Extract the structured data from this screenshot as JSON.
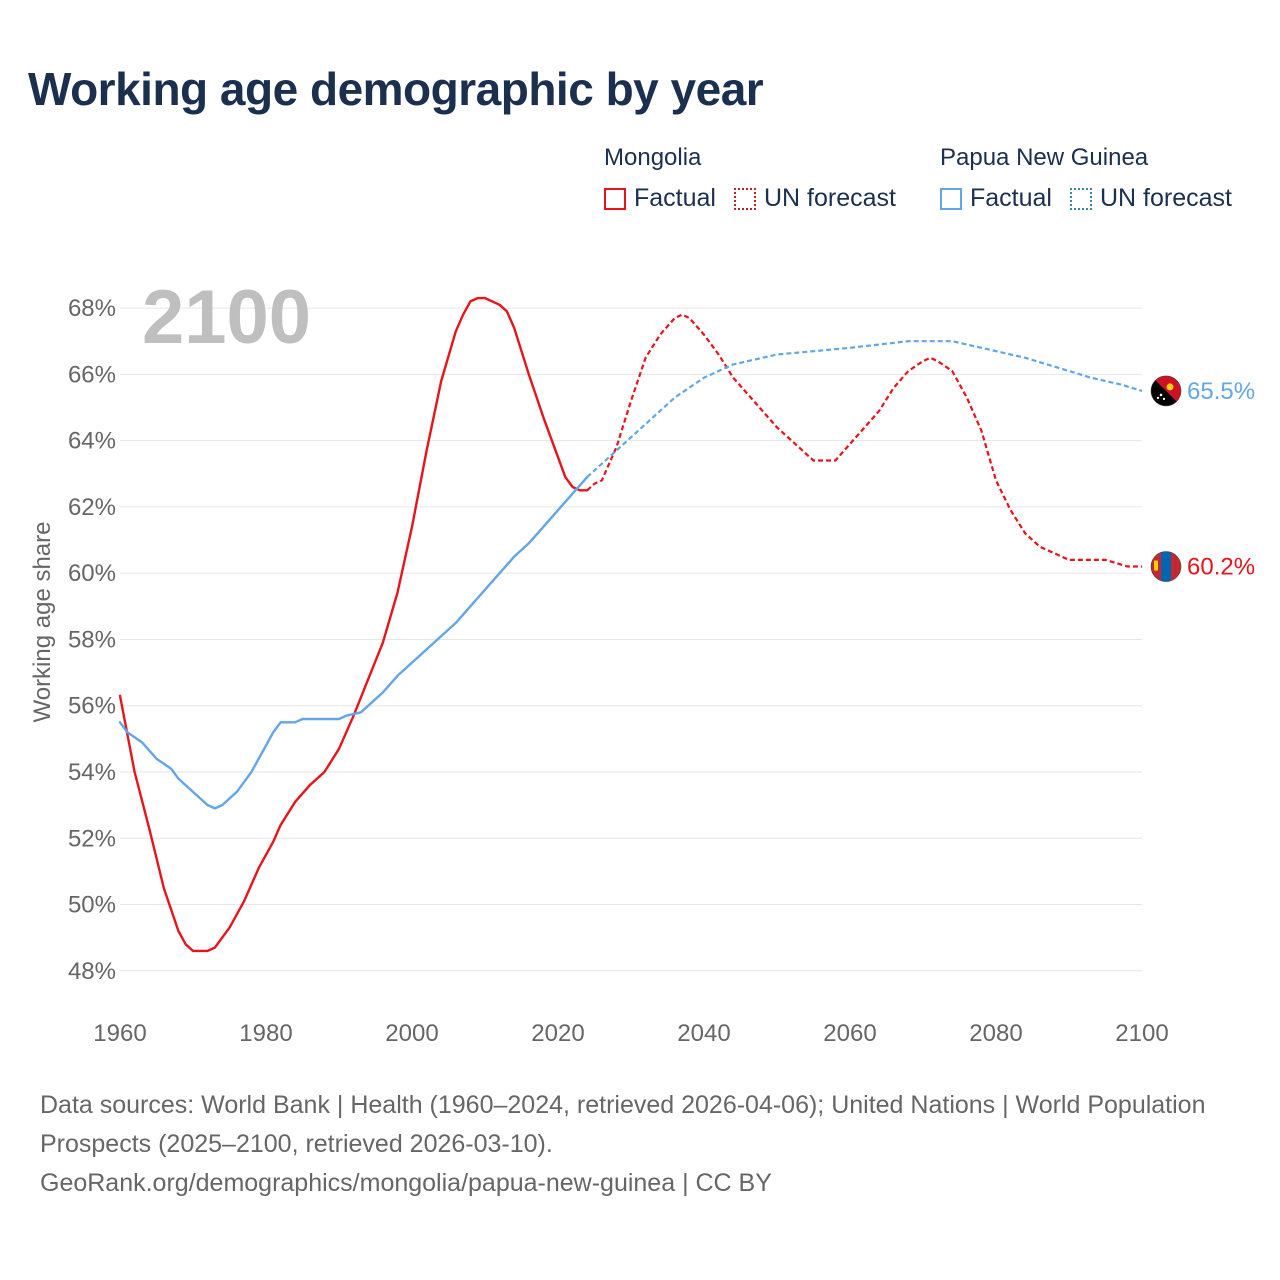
{
  "title": "Working age demographic by year",
  "colors": {
    "mongolia": "#e8141c",
    "png": "#62a6e8",
    "grid": "#e6e6e6",
    "axis_text": "#666666",
    "title": "#1b2f4f",
    "year_watermark": "#bfbfbf"
  },
  "legend": {
    "groups": [
      {
        "name": "Mongolia",
        "factual": "Factual",
        "forecast": "UN forecast"
      },
      {
        "name": "Papua New Guinea",
        "factual": "Factual",
        "forecast": "UN forecast"
      }
    ]
  },
  "chart_data": {
    "type": "line",
    "title": "Working age demographic by year",
    "xlabel": "",
    "ylabel": "Working age share",
    "year_label": "2100",
    "xlim": [
      1960,
      2100
    ],
    "ylim": [
      47.3,
      69.3
    ],
    "x_ticks": [
      1960,
      1980,
      2000,
      2020,
      2040,
      2060,
      2080,
      2100
    ],
    "y_ticks": [
      48,
      50,
      52,
      54,
      56,
      58,
      60,
      62,
      64,
      66,
      68
    ],
    "y_tick_suffix": "%",
    "factual_end_year": 2024,
    "series": [
      {
        "name": "Mongolia",
        "end_label": "60.2%",
        "flag_icon": "mongolia-flag-icon",
        "points": [
          [
            1960,
            56.3
          ],
          [
            1962,
            54.0
          ],
          [
            1964,
            52.3
          ],
          [
            1966,
            50.5
          ],
          [
            1968,
            49.2
          ],
          [
            1969,
            48.8
          ],
          [
            1970,
            48.6
          ],
          [
            1972,
            48.6
          ],
          [
            1973,
            48.7
          ],
          [
            1975,
            49.3
          ],
          [
            1977,
            50.1
          ],
          [
            1979,
            51.1
          ],
          [
            1981,
            51.9
          ],
          [
            1982,
            52.4
          ],
          [
            1984,
            53.1
          ],
          [
            1986,
            53.6
          ],
          [
            1988,
            54.0
          ],
          [
            1990,
            54.7
          ],
          [
            1992,
            55.7
          ],
          [
            1994,
            56.8
          ],
          [
            1996,
            57.9
          ],
          [
            1998,
            59.4
          ],
          [
            2000,
            61.4
          ],
          [
            2002,
            63.7
          ],
          [
            2004,
            65.8
          ],
          [
            2006,
            67.3
          ],
          [
            2007,
            67.8
          ],
          [
            2008,
            68.2
          ],
          [
            2009,
            68.3
          ],
          [
            2010,
            68.3
          ],
          [
            2012,
            68.1
          ],
          [
            2013,
            67.9
          ],
          [
            2014,
            67.4
          ],
          [
            2016,
            66.0
          ],
          [
            2018,
            64.7
          ],
          [
            2019,
            64.1
          ],
          [
            2020,
            63.5
          ],
          [
            2021,
            62.9
          ],
          [
            2022,
            62.6
          ],
          [
            2023,
            62.5
          ],
          [
            2024,
            62.5
          ],
          [
            2025,
            62.7
          ],
          [
            2026,
            62.8
          ],
          [
            2027,
            63.3
          ],
          [
            2028,
            63.8
          ],
          [
            2030,
            65.2
          ],
          [
            2032,
            66.5
          ],
          [
            2034,
            67.2
          ],
          [
            2036,
            67.7
          ],
          [
            2037,
            67.8
          ],
          [
            2038,
            67.7
          ],
          [
            2040,
            67.2
          ],
          [
            2042,
            66.6
          ],
          [
            2044,
            65.9
          ],
          [
            2046,
            65.4
          ],
          [
            2048,
            64.9
          ],
          [
            2050,
            64.4
          ],
          [
            2052,
            64.0
          ],
          [
            2054,
            63.6
          ],
          [
            2055,
            63.4
          ],
          [
            2058,
            63.4
          ],
          [
            2060,
            63.9
          ],
          [
            2062,
            64.4
          ],
          [
            2064,
            64.9
          ],
          [
            2066,
            65.6
          ],
          [
            2068,
            66.1
          ],
          [
            2070,
            66.4
          ],
          [
            2071,
            66.5
          ],
          [
            2072,
            66.4
          ],
          [
            2074,
            66.1
          ],
          [
            2076,
            65.3
          ],
          [
            2078,
            64.3
          ],
          [
            2080,
            62.8
          ],
          [
            2082,
            61.9
          ],
          [
            2084,
            61.2
          ],
          [
            2086,
            60.8
          ],
          [
            2088,
            60.6
          ],
          [
            2090,
            60.4
          ],
          [
            2095,
            60.4
          ],
          [
            2098,
            60.2
          ],
          [
            2100,
            60.2
          ]
        ]
      },
      {
        "name": "Papua New Guinea",
        "end_label": "65.5%",
        "flag_icon": "papua-new-guinea-flag-icon",
        "points": [
          [
            1960,
            55.5
          ],
          [
            1961,
            55.2
          ],
          [
            1963,
            54.9
          ],
          [
            1965,
            54.4
          ],
          [
            1967,
            54.1
          ],
          [
            1968,
            53.8
          ],
          [
            1970,
            53.4
          ],
          [
            1972,
            53.0
          ],
          [
            1973,
            52.9
          ],
          [
            1974,
            53.0
          ],
          [
            1976,
            53.4
          ],
          [
            1978,
            54.0
          ],
          [
            1979,
            54.4
          ],
          [
            1980,
            54.8
          ],
          [
            1981,
            55.2
          ],
          [
            1982,
            55.5
          ],
          [
            1983,
            55.5
          ],
          [
            1984,
            55.5
          ],
          [
            1985,
            55.6
          ],
          [
            1990,
            55.6
          ],
          [
            1991,
            55.7
          ],
          [
            1993,
            55.8
          ],
          [
            1994,
            56.0
          ],
          [
            1996,
            56.4
          ],
          [
            1998,
            56.9
          ],
          [
            2000,
            57.3
          ],
          [
            2002,
            57.7
          ],
          [
            2004,
            58.1
          ],
          [
            2006,
            58.5
          ],
          [
            2008,
            59.0
          ],
          [
            2010,
            59.5
          ],
          [
            2012,
            60.0
          ],
          [
            2014,
            60.5
          ],
          [
            2016,
            60.9
          ],
          [
            2018,
            61.4
          ],
          [
            2020,
            61.9
          ],
          [
            2022,
            62.4
          ],
          [
            2024,
            62.9
          ],
          [
            2025,
            63.1
          ],
          [
            2026,
            63.3
          ],
          [
            2028,
            63.7
          ],
          [
            2030,
            64.1
          ],
          [
            2032,
            64.5
          ],
          [
            2034,
            64.9
          ],
          [
            2036,
            65.3
          ],
          [
            2038,
            65.6
          ],
          [
            2040,
            65.9
          ],
          [
            2042,
            66.1
          ],
          [
            2044,
            66.3
          ],
          [
            2046,
            66.4
          ],
          [
            2048,
            66.5
          ],
          [
            2050,
            66.6
          ],
          [
            2055,
            66.7
          ],
          [
            2060,
            66.8
          ],
          [
            2064,
            66.9
          ],
          [
            2068,
            67.0
          ],
          [
            2074,
            67.0
          ],
          [
            2076,
            66.9
          ],
          [
            2078,
            66.8
          ],
          [
            2082,
            66.6
          ],
          [
            2084,
            66.5
          ],
          [
            2087,
            66.3
          ],
          [
            2090,
            66.1
          ],
          [
            2093,
            65.9
          ],
          [
            2097,
            65.7
          ],
          [
            2100,
            65.5
          ]
        ]
      }
    ]
  },
  "footer": {
    "sources": "Data sources: World Bank | Health (1960–2024, retrieved 2026-04-06); United Nations | World Population Prospects (2025–2100, retrieved 2026-03-10).",
    "credit": "GeoRank.org/demographics/mongolia/papua-new-guinea | CC BY"
  }
}
